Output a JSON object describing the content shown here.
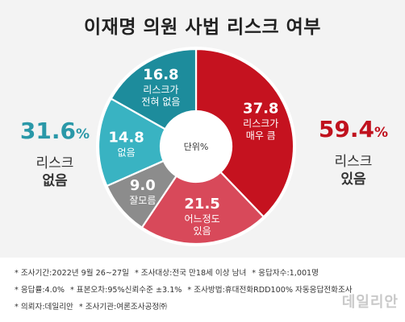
{
  "title": "이재명 의원 사법 리스크 여부",
  "left_summary": {
    "value": "31.6",
    "unit": "%",
    "label_line1": "리스크",
    "label_line2": "없음",
    "color": "#2a98a8"
  },
  "right_summary": {
    "value": "59.4",
    "unit": "%",
    "label_line1": "리스크",
    "label_line2": "있음",
    "color": "#c0121e"
  },
  "chart_data": {
    "type": "pie",
    "donut": true,
    "center_label": "단위%",
    "slices": [
      {
        "label_lines": [
          "리스크가",
          "매우 큼"
        ],
        "value": 37.8,
        "color": "#c5121f"
      },
      {
        "label_lines": [
          "어느정도",
          "있음"
        ],
        "value": 21.5,
        "color": "#d8495a"
      },
      {
        "label_lines": [
          "잘모름"
        ],
        "value": 9.0,
        "color": "#8c8c8c"
      },
      {
        "label_lines": [
          "없음"
        ],
        "value": 14.8,
        "color": "#39b3c2"
      },
      {
        "label_lines": [
          "리스크가",
          "전혀 없음"
        ],
        "value": 16.8,
        "color": "#1d8c9c"
      }
    ]
  },
  "notes": {
    "line1": [
      "* 조사기간:2022년 9월 26~27일",
      "* 조사대상:전국 만18세 이상 남녀",
      "* 응답자수:1,001명"
    ],
    "line2": [
      "* 응답률:4.0%",
      "* 표본오차:95%신뢰수준 ±3.1%",
      "* 조사방법:휴대전화RDD100% 자동응답전화조사"
    ],
    "line3": [
      "* 의뢰자:데일리안",
      "* 조사기관:여론조사공정㈜"
    ]
  },
  "brand": "데일리안"
}
